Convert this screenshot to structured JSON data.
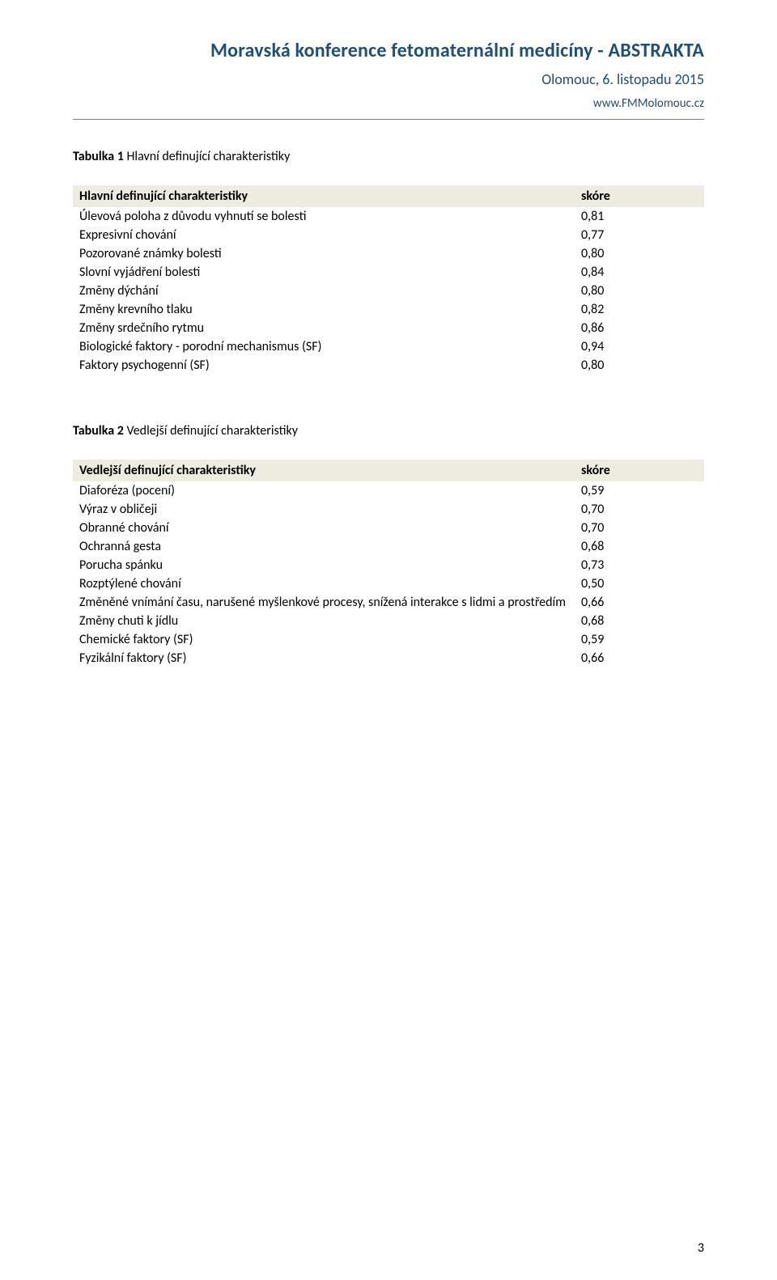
{
  "header": {
    "title": "Moravská konference fetomaternální medicíny - ABSTRAKTA",
    "sub": "Olomouc, 6. listopadu 2015",
    "url": "www.FMMolomouc.cz"
  },
  "table1": {
    "caption_bold": "Tabulka 1 ",
    "caption_rest": "Hlavní definující charakteristiky",
    "header_label": "Hlavní definující charakteristiky",
    "header_score": "skóre",
    "rows": [
      {
        "label": "Úlevová poloha z důvodu vyhnutí se bolesti",
        "score": "0,81"
      },
      {
        "label": "Expresivní chování",
        "score": "0,77"
      },
      {
        "label": "Pozorované známky bolesti",
        "score": "0,80"
      },
      {
        "label": "Slovní vyjádření bolesti",
        "score": "0,84"
      },
      {
        "label": "Změny dýchání",
        "score": "0,80"
      },
      {
        "label": "Změny krevního tlaku",
        "score": "0,82"
      },
      {
        "label": "Změny srdečního rytmu",
        "score": "0,86"
      },
      {
        "label": "Biologické faktory -  porodní mechanismus (SF)",
        "score": "0,94"
      },
      {
        "label": "Faktory psychogenní (SF)",
        "score": "0,80"
      }
    ]
  },
  "table2": {
    "caption_bold": "Tabulka 2 ",
    "caption_rest": "Vedlejší definující charakteristiky",
    "header_label": "Vedlejší definující charakteristiky",
    "header_score": "skóre",
    "rows": [
      {
        "label": "Diaforéza (pocení)",
        "score": "0,59"
      },
      {
        "label": "Výraz v obličeji",
        "score": "0,70"
      },
      {
        "label": "Obranné chování",
        "score": "0,70"
      },
      {
        "label": "Ochranná gesta",
        "score": "0,68"
      },
      {
        "label": "Porucha spánku",
        "score": "0,73"
      },
      {
        "label": "Rozptýlené chování",
        "score": "0,50"
      },
      {
        "label": "Změněné vnímání času, narušené myšlenkové procesy, snížená interakce s lidmi a prostředím",
        "score": "0,66"
      },
      {
        "label": "Změny chuti k jídlu",
        "score": "0,68"
      },
      {
        "label": "Chemické faktory (SF)",
        "score": "0,59"
      },
      {
        "label": "Fyzikální faktory (SF)",
        "score": "0,66"
      }
    ]
  },
  "page_number": "3",
  "colors": {
    "heading": "#1f4e79",
    "table_header_bg": "#eeece1",
    "hr": "#7f7f7f",
    "text": "#000000",
    "background": "#ffffff"
  }
}
